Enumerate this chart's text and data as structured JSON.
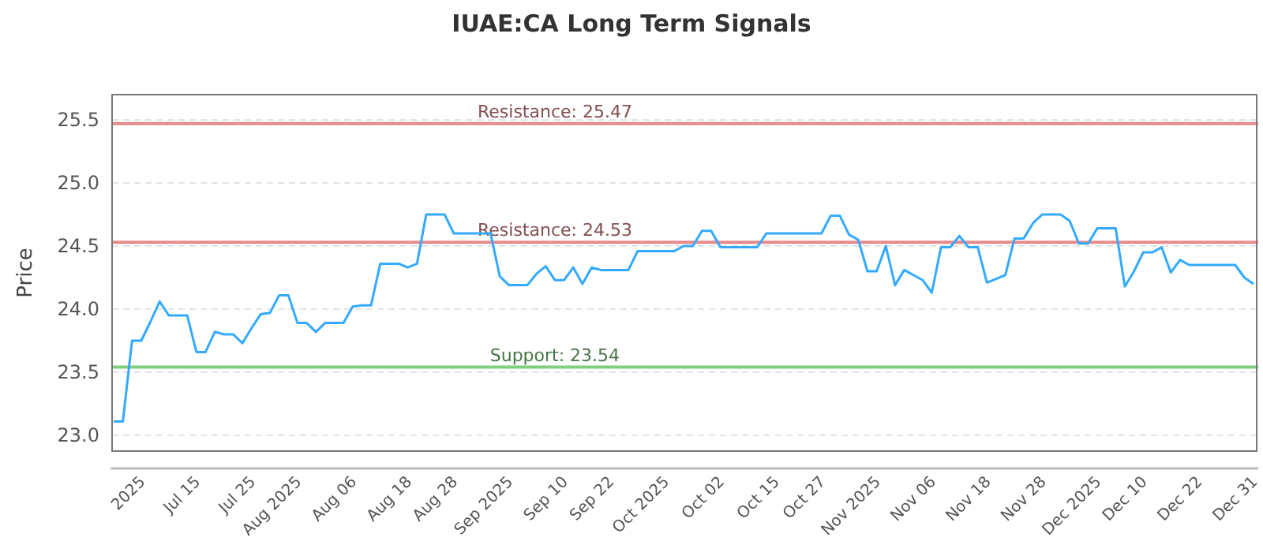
{
  "chart_data": {
    "type": "line",
    "title": "IUAE:CA Long Term Signals",
    "ylabel": "Price",
    "categories": [
      null,
      null,
      null,
      "2025",
      null,
      null,
      null,
      null,
      null,
      "Jul 15",
      null,
      null,
      null,
      null,
      null,
      "Jul 25",
      null,
      null,
      null,
      null,
      "Aug 2025",
      null,
      null,
      null,
      null,
      null,
      "Aug 06",
      null,
      null,
      null,
      null,
      null,
      "Aug 18",
      null,
      null,
      null,
      null,
      "Aug 28",
      null,
      null,
      null,
      null,
      null,
      "Sep 2025",
      null,
      null,
      null,
      null,
      null,
      "Sep 10",
      null,
      null,
      null,
      null,
      "Sep 22",
      null,
      null,
      null,
      null,
      null,
      "Oct 2025",
      null,
      null,
      null,
      null,
      null,
      "Oct 02",
      null,
      null,
      null,
      null,
      null,
      "Oct 15",
      null,
      null,
      null,
      null,
      "Oct 27",
      null,
      null,
      null,
      null,
      null,
      "Nov 2025",
      null,
      null,
      null,
      null,
      null,
      "Nov 06",
      null,
      null,
      null,
      null,
      null,
      "Nov 18",
      null,
      null,
      null,
      null,
      null,
      "Nov 28",
      null,
      null,
      null,
      null,
      null,
      "Dec 2025",
      null,
      null,
      null,
      null,
      "Dec 10",
      null,
      null,
      null,
      null,
      null,
      "Dec 22",
      null,
      null,
      null,
      null,
      null,
      "Dec 31"
    ],
    "series": [
      {
        "color": "#33aaff",
        "values": [
          23.11,
          23.11,
          23.75,
          23.75,
          23.9,
          24.06,
          23.95,
          23.95,
          23.95,
          23.66,
          23.66,
          23.82,
          23.8,
          23.8,
          23.73,
          23.85,
          23.96,
          23.97,
          24.11,
          24.11,
          23.89,
          23.89,
          23.82,
          23.89,
          23.89,
          23.89,
          24.02,
          24.03,
          24.03,
          24.36,
          24.36,
          24.36,
          24.33,
          24.36,
          24.75,
          24.75,
          24.75,
          24.6,
          24.6,
          24.6,
          24.6,
          24.6,
          24.26,
          24.19,
          24.19,
          24.19,
          24.28,
          24.34,
          24.23,
          24.23,
          24.33,
          24.2,
          24.33,
          24.31,
          24.31,
          24.31,
          24.31,
          24.46,
          24.46,
          24.46,
          24.46,
          24.46,
          24.5,
          24.5,
          24.62,
          24.62,
          24.49,
          24.49,
          24.49,
          24.49,
          24.49,
          24.6,
          24.6,
          24.6,
          24.6,
          24.6,
          24.6,
          24.6,
          24.74,
          24.74,
          24.59,
          24.55,
          24.3,
          24.3,
          24.5,
          24.19,
          24.31,
          24.27,
          24.23,
          24.13,
          24.49,
          24.49,
          24.58,
          24.49,
          24.49,
          24.21,
          24.24,
          24.27,
          24.56,
          24.56,
          24.68,
          24.75,
          24.75,
          24.75,
          24.7,
          24.52,
          24.52,
          24.64,
          24.64,
          24.64,
          24.18,
          24.3,
          24.45,
          24.45,
          24.49,
          24.29,
          24.39,
          24.35,
          24.35,
          24.35,
          24.35,
          24.35,
          24.35,
          24.25,
          24.2
        ]
      }
    ],
    "ylim": [
      22.875,
      25.7
    ],
    "yticks": [
      {
        "value": 23,
        "label": "23.0"
      },
      23.5,
      {
        "value": 24,
        "label": "24.0"
      },
      24.5,
      {
        "value": 25,
        "label": "25.0"
      },
      25.5
    ],
    "grid": "y",
    "ref_lines": [
      {
        "axis": "y",
        "value": 25.47,
        "label": "Resistance: 25.47",
        "color": "#e88a8a"
      },
      {
        "axis": "y",
        "value": 24.53,
        "label": "Resistance: 24.53",
        "color": "#e88a8a"
      },
      {
        "axis": "y",
        "value": 23.54,
        "label": "Support: 23.54",
        "color": "#7fcf7f"
      }
    ]
  }
}
